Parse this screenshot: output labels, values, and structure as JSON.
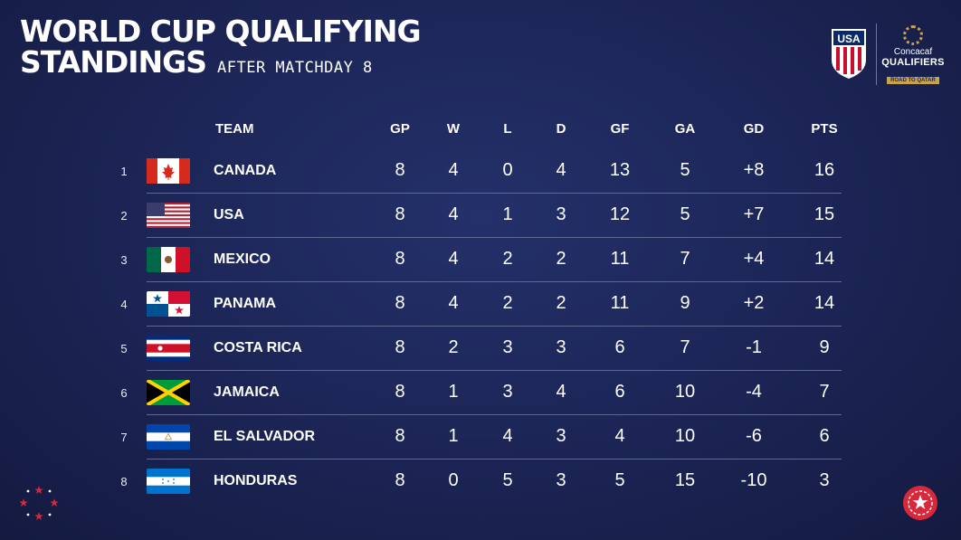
{
  "header": {
    "title_line1": "WORLD CUP QUALIFYING",
    "title_line2": "STANDINGS",
    "subtitle": "AFTER MATCHDAY 8"
  },
  "logos": {
    "usa_crest_text": "USA",
    "concacaf_name": "Concacaf",
    "concacaf_qualifiers": "QUALIFIERS",
    "concacaf_road": "ROAD TO QATAR",
    "colors": {
      "crest_red": "#c8102e",
      "crest_blue": "#0a2a66",
      "gold": "#c9a24a"
    }
  },
  "table": {
    "columns": {
      "team": "TEAM",
      "gp": "GP",
      "w": "W",
      "l": "L",
      "d": "D",
      "gf": "GF",
      "ga": "GA",
      "gd": "GD",
      "pts": "PTS"
    },
    "rows": [
      {
        "rank": "1",
        "team": "CANADA",
        "flag": "canada-flag-icon",
        "gp": "8",
        "w": "4",
        "l": "0",
        "d": "4",
        "gf": "13",
        "ga": "5",
        "gd": "+8",
        "pts": "16"
      },
      {
        "rank": "2",
        "team": "USA",
        "flag": "usa-flag-icon",
        "gp": "8",
        "w": "4",
        "l": "1",
        "d": "3",
        "gf": "12",
        "ga": "5",
        "gd": "+7",
        "pts": "15"
      },
      {
        "rank": "3",
        "team": "MEXICO",
        "flag": "mexico-flag-icon",
        "gp": "8",
        "w": "4",
        "l": "2",
        "d": "2",
        "gf": "11",
        "ga": "7",
        "gd": "+4",
        "pts": "14"
      },
      {
        "rank": "4",
        "team": "PANAMA",
        "flag": "panama-flag-icon",
        "gp": "8",
        "w": "4",
        "l": "2",
        "d": "2",
        "gf": "11",
        "ga": "9",
        "gd": "+2",
        "pts": "14"
      },
      {
        "rank": "5",
        "team": "COSTA RICA",
        "flag": "costa-rica-flag-icon",
        "gp": "8",
        "w": "2",
        "l": "3",
        "d": "3",
        "gf": "6",
        "ga": "7",
        "gd": "-1",
        "pts": "9"
      },
      {
        "rank": "6",
        "team": "JAMAICA",
        "flag": "jamaica-flag-icon",
        "gp": "8",
        "w": "1",
        "l": "3",
        "d": "4",
        "gf": "6",
        "ga": "10",
        "gd": "-4",
        "pts": "7"
      },
      {
        "rank": "7",
        "team": "EL SALVADOR",
        "flag": "el-salvador-flag-icon",
        "gp": "8",
        "w": "1",
        "l": "4",
        "d": "3",
        "gf": "4",
        "ga": "10",
        "gd": "-6",
        "pts": "6"
      },
      {
        "rank": "8",
        "team": "HONDURAS",
        "flag": "honduras-flag-icon",
        "gp": "8",
        "w": "0",
        "l": "5",
        "d": "3",
        "gf": "5",
        "ga": "15",
        "gd": "-10",
        "pts": "3"
      }
    ]
  },
  "decorations": {
    "left": "star-ring-icon",
    "right": "badge-icon",
    "accent_red": "#d8283a"
  }
}
